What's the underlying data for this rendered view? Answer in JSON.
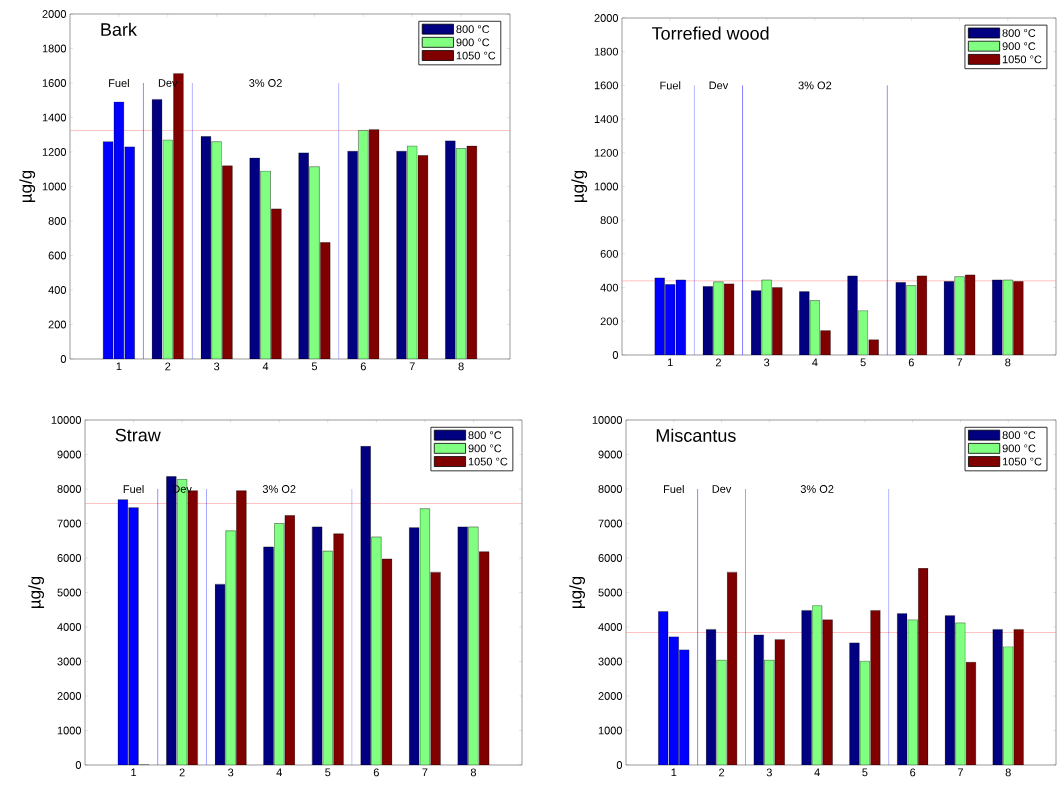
{
  "chart_data": [
    {
      "type": "bar",
      "title": "Bark",
      "ylabel": "µg/g",
      "x": [
        1,
        2,
        3,
        4,
        5,
        6,
        7,
        8
      ],
      "xlim": [
        0,
        9
      ],
      "xticks": [
        1,
        2,
        3,
        4,
        5,
        6,
        7,
        8
      ],
      "ylim": [
        0,
        2000
      ],
      "yticks": [
        0,
        200,
        400,
        600,
        800,
        1000,
        1200,
        1400,
        1600,
        1800,
        2000
      ],
      "legend": "top right",
      "series": [
        {
          "name": "800 °C",
          "color": "#000080",
          "colors": [
            "#0000ff",
            "#000080",
            "#000080",
            "#000080",
            "#000080",
            "#000080",
            "#000080",
            "#000080"
          ],
          "values": [
            1260,
            1505,
            1290,
            1165,
            1195,
            1205,
            1205,
            1265
          ]
        },
        {
          "name": "900 °C",
          "color": "#80ff80",
          "colors": [
            "#0000ff",
            "#80ff80",
            "#80ff80",
            "#80ff80",
            "#80ff80",
            "#80ff80",
            "#80ff80",
            "#80ff80"
          ],
          "values": [
            1490,
            1270,
            1260,
            1090,
            1115,
            1325,
            1235,
            1220
          ]
        },
        {
          "name": "1050 °C",
          "color": "#800000",
          "colors": [
            "#0000ff",
            "#800000",
            "#800000",
            "#800000",
            "#800000",
            "#800000",
            "#800000",
            "#800000"
          ],
          "values": [
            1230,
            1655,
            1120,
            870,
            675,
            1330,
            1180,
            1235
          ]
        }
      ],
      "ref_lines": [
        {
          "axis": "y",
          "value": 1325,
          "color": "#ff8080"
        },
        {
          "axis": "x",
          "value": 1.5,
          "color": "#0000ff"
        },
        {
          "axis": "x",
          "value": 2.5,
          "color": "#0000ff"
        },
        {
          "axis": "x",
          "value": 5.5,
          "color": "#0000ff"
        }
      ],
      "annotations": [
        "Fuel",
        "Dev",
        "3% O2"
      ]
    },
    {
      "type": "bar",
      "title": "Torrefied wood",
      "ylabel": "µg/g",
      "x": [
        1,
        2,
        3,
        4,
        5,
        6,
        7,
        8
      ],
      "xlim": [
        0,
        9
      ],
      "xticks": [
        1,
        2,
        3,
        4,
        5,
        6,
        7,
        8
      ],
      "ylim": [
        0,
        2000
      ],
      "yticks": [
        0,
        200,
        400,
        600,
        800,
        1000,
        1200,
        1400,
        1600,
        1800,
        2000
      ],
      "legend": "top right",
      "series": [
        {
          "name": "800 °C",
          "color": "#000080",
          "colors": [
            "#0000ff",
            "#000080",
            "#000080",
            "#000080",
            "#000080",
            "#000080",
            "#000080",
            "#000080"
          ],
          "values": [
            457,
            406,
            382,
            376,
            469,
            430,
            436,
            445
          ]
        },
        {
          "name": "900 °C",
          "color": "#80ff80",
          "colors": [
            "#0000ff",
            "#80ff80",
            "#80ff80",
            "#80ff80",
            "#80ff80",
            "#80ff80",
            "#80ff80",
            "#80ff80"
          ],
          "values": [
            418,
            434,
            445,
            323,
            263,
            412,
            465,
            445
          ]
        },
        {
          "name": "1050 °C",
          "color": "#800000",
          "colors": [
            "#0000ff",
            "#800000",
            "#800000",
            "#800000",
            "#800000",
            "#800000",
            "#800000",
            "#800000"
          ],
          "values": [
            445,
            422,
            400,
            145,
            91,
            469,
            475,
            436
          ]
        }
      ],
      "ref_lines": [
        {
          "axis": "y",
          "value": 440,
          "color": "#ff8080"
        },
        {
          "axis": "x",
          "value": 1.5,
          "color": "#0000ff"
        },
        {
          "axis": "x",
          "value": 2.5,
          "color": "#0000ff"
        },
        {
          "axis": "x",
          "value": 5.5,
          "color": "#0000ff"
        }
      ],
      "annotations": [
        "Fuel",
        "Dev",
        "3% O2"
      ]
    },
    {
      "type": "bar",
      "title": "Straw",
      "ylabel": "µg/g",
      "x": [
        1,
        2,
        3,
        4,
        5,
        6,
        7,
        8
      ],
      "xlim": [
        0,
        9
      ],
      "xticks": [
        1,
        2,
        3,
        4,
        5,
        6,
        7,
        8
      ],
      "ylim": [
        0,
        10000
      ],
      "yticks": [
        0,
        1000,
        2000,
        3000,
        4000,
        5000,
        6000,
        7000,
        8000,
        9000,
        10000
      ],
      "legend": "top right",
      "series": [
        {
          "name": "800 °C",
          "color": "#000080",
          "colors": [
            "#0000ff",
            "#000080",
            "#000080",
            "#000080",
            "#000080",
            "#000080",
            "#000080",
            "#000080"
          ],
          "values": [
            7690,
            8360,
            5240,
            6320,
            6900,
            9240,
            6880,
            6900
          ]
        },
        {
          "name": "900 °C",
          "color": "#80ff80",
          "colors": [
            "#0000ff",
            "#80ff80",
            "#80ff80",
            "#80ff80",
            "#80ff80",
            "#80ff80",
            "#80ff80",
            "#80ff80"
          ],
          "values": [
            7460,
            8280,
            6790,
            7000,
            6200,
            6610,
            7430,
            6900
          ]
        },
        {
          "name": "1050 °C",
          "color": "#800000",
          "colors": [
            "#0000ff",
            "#800000",
            "#800000",
            "#800000",
            "#800000",
            "#800000",
            "#800000",
            "#800000"
          ],
          "values": [
            0,
            7950,
            7950,
            7230,
            6700,
            5970,
            5590,
            6180
          ]
        }
      ],
      "ref_lines": [
        {
          "axis": "y",
          "value": 7580,
          "color": "#ff8080"
        },
        {
          "axis": "x",
          "value": 1.5,
          "color": "#0000ff"
        },
        {
          "axis": "x",
          "value": 2.5,
          "color": "#0000ff"
        },
        {
          "axis": "x",
          "value": 5.5,
          "color": "#0000ff"
        }
      ],
      "annotations": [
        "Fuel",
        "Dev",
        "3% O2"
      ]
    },
    {
      "type": "bar",
      "title": "Miscantus",
      "ylabel": "µg/g",
      "x": [
        1,
        2,
        3,
        4,
        5,
        6,
        7,
        8
      ],
      "xlim": [
        0,
        9
      ],
      "xticks": [
        1,
        2,
        3,
        4,
        5,
        6,
        7,
        8
      ],
      "ylim": [
        0,
        10000
      ],
      "yticks": [
        0,
        1000,
        2000,
        3000,
        4000,
        5000,
        6000,
        7000,
        8000,
        9000,
        10000
      ],
      "legend": "top right",
      "series": [
        {
          "name": "800 °C",
          "color": "#000080",
          "colors": [
            "#0000ff",
            "#000080",
            "#000080",
            "#000080",
            "#000080",
            "#000080",
            "#000080",
            "#000080"
          ],
          "values": [
            4450,
            3930,
            3770,
            4480,
            3540,
            4390,
            4330,
            3930
          ]
        },
        {
          "name": "900 °C",
          "color": "#80ff80",
          "colors": [
            "#0000ff",
            "#80ff80",
            "#80ff80",
            "#80ff80",
            "#80ff80",
            "#80ff80",
            "#80ff80",
            "#80ff80"
          ],
          "values": [
            3720,
            3040,
            3040,
            4620,
            3010,
            4210,
            4120,
            3430
          ]
        },
        {
          "name": "1050 °C",
          "color": "#800000",
          "colors": [
            "#0000ff",
            "#800000",
            "#800000",
            "#800000",
            "#800000",
            "#800000",
            "#800000",
            "#800000"
          ],
          "values": [
            3340,
            5590,
            3640,
            4210,
            4480,
            5700,
            2980,
            3930
          ]
        }
      ],
      "ref_lines": [
        {
          "axis": "y",
          "value": 3840,
          "color": "#ff8080"
        },
        {
          "axis": "x",
          "value": 1.5,
          "color": "#0000ff"
        },
        {
          "axis": "x",
          "value": 2.5,
          "color": "#0000ff"
        },
        {
          "axis": "x",
          "value": 5.5,
          "color": "#0000ff"
        }
      ],
      "annotations": [
        "Fuel",
        "Dev",
        "3% O2"
      ]
    }
  ]
}
